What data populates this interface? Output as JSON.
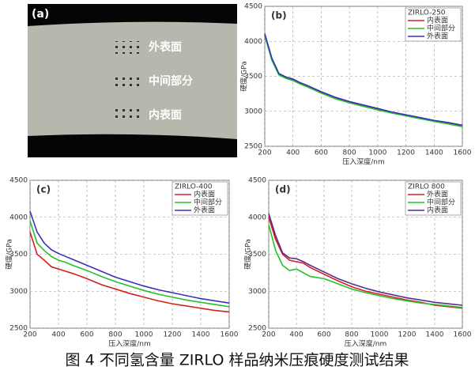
{
  "micrograph": {
    "label": "(a)",
    "regions": [
      "外表面",
      "中间部分",
      "内表面"
    ]
  },
  "chart_data": [
    {
      "type": "line",
      "label": "(b)",
      "legend_title": "ZIRLO-250",
      "xlabel": "压入深度/nm",
      "ylabel": "硬度/GPa",
      "x": [
        200,
        250,
        300,
        350,
        400,
        450,
        500,
        600,
        700,
        800,
        900,
        1000,
        1100,
        1200,
        1300,
        1400,
        1500,
        1600
      ],
      "xlim": [
        200,
        1600
      ],
      "ylim": [
        2500,
        4500
      ],
      "xticks": [
        200,
        400,
        600,
        800,
        1000,
        1200,
        1400,
        1600
      ],
      "yticks": [
        2500,
        3000,
        3500,
        4000,
        4500
      ],
      "grid": true,
      "series": [
        {
          "name": "内表面",
          "color": "#d62020",
          "values": [
            4100,
            3750,
            3530,
            3480,
            3450,
            3400,
            3360,
            3270,
            3190,
            3130,
            3080,
            3030,
            2980,
            2940,
            2900,
            2860,
            2830,
            2790
          ]
        },
        {
          "name": "中间部分",
          "color": "#22c22a",
          "values": [
            4080,
            3730,
            3520,
            3470,
            3440,
            3390,
            3350,
            3260,
            3180,
            3120,
            3070,
            3020,
            2975,
            2935,
            2895,
            2855,
            2820,
            2780
          ]
        },
        {
          "name": "外表面",
          "color": "#3a2fbf",
          "values": [
            4110,
            3760,
            3540,
            3490,
            3460,
            3410,
            3370,
            3280,
            3200,
            3140,
            3090,
            3040,
            2990,
            2950,
            2910,
            2870,
            2840,
            2800
          ]
        }
      ]
    },
    {
      "type": "line",
      "label": "(c)",
      "legend_title": "ZIRLO-400",
      "xlabel": "压入深度/nm",
      "ylabel": "硬度/GPa",
      "x": [
        200,
        250,
        300,
        350,
        400,
        450,
        500,
        600,
        700,
        800,
        900,
        1000,
        1100,
        1200,
        1300,
        1400,
        1500,
        1600
      ],
      "xlim": [
        200,
        1600
      ],
      "ylim": [
        2500,
        4500
      ],
      "xticks": [
        200,
        400,
        600,
        800,
        1000,
        1200,
        1400,
        1600
      ],
      "yticks": [
        2500,
        3000,
        3500,
        4000,
        4500
      ],
      "grid": true,
      "series": [
        {
          "name": "内表面",
          "color": "#d62020",
          "values": [
            3800,
            3500,
            3420,
            3330,
            3300,
            3270,
            3240,
            3170,
            3090,
            3030,
            2970,
            2920,
            2870,
            2830,
            2800,
            2770,
            2740,
            2720
          ]
        },
        {
          "name": "中间部分",
          "color": "#22c22a",
          "values": [
            3950,
            3650,
            3550,
            3470,
            3420,
            3390,
            3350,
            3280,
            3200,
            3130,
            3070,
            3010,
            2960,
            2920,
            2880,
            2850,
            2820,
            2790
          ]
        },
        {
          "name": "外表面",
          "color": "#3a2fbf",
          "values": [
            4080,
            3800,
            3650,
            3560,
            3510,
            3470,
            3430,
            3350,
            3270,
            3190,
            3130,
            3070,
            3020,
            2980,
            2940,
            2900,
            2870,
            2840
          ]
        }
      ]
    },
    {
      "type": "line",
      "label": "(d)",
      "legend_title": "ZIRLO 800",
      "xlabel": "压入深度/nm",
      "ylabel": "硬度/GPa",
      "x": [
        200,
        250,
        300,
        350,
        400,
        450,
        500,
        600,
        700,
        800,
        900,
        1000,
        1100,
        1200,
        1300,
        1400,
        1500,
        1600
      ],
      "xlim": [
        200,
        1600
      ],
      "ylim": [
        2500,
        4500
      ],
      "xticks": [
        200,
        400,
        600,
        800,
        1000,
        1200,
        1400,
        1600
      ],
      "yticks": [
        2500,
        3000,
        3500,
        4000,
        4500
      ],
      "grid": true,
      "series": [
        {
          "name": "外表面",
          "color": "#d62020",
          "values": [
            4000,
            3700,
            3500,
            3420,
            3400,
            3380,
            3320,
            3230,
            3140,
            3060,
            3000,
            2960,
            2920,
            2880,
            2850,
            2810,
            2790,
            2770
          ]
        },
        {
          "name": "中间部分",
          "color": "#22c22a",
          "values": [
            3900,
            3550,
            3350,
            3280,
            3300,
            3250,
            3200,
            3170,
            3100,
            3030,
            2980,
            2940,
            2900,
            2870,
            2840,
            2820,
            2800,
            2780
          ]
        },
        {
          "name": "内表面",
          "color": "#5a2a8f",
          "values": [
            4050,
            3750,
            3520,
            3450,
            3440,
            3400,
            3350,
            3260,
            3170,
            3100,
            3040,
            2990,
            2950,
            2910,
            2880,
            2850,
            2830,
            2810
          ]
        }
      ]
    }
  ],
  "caption": "图 4  不同氢含量 ZIRLO 样品纳米压痕硬度测试结果"
}
